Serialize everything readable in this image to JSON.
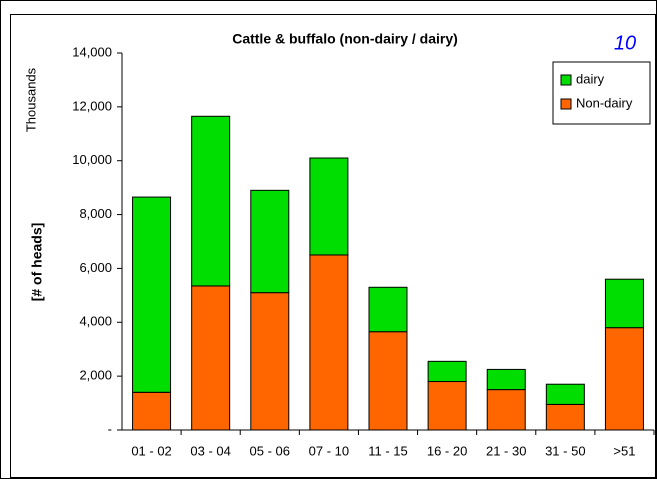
{
  "chart_data": {
    "type": "stacked-bar",
    "title": "Cattle & buffalo (non-dairy / dairy)",
    "annotation": "10",
    "y_unit_label": "Thousands",
    "y_axis_label": "[# of heads]",
    "categories": [
      "01 - 02",
      "03 - 04",
      "05 - 06",
      "07 - 10",
      "11 - 15",
      "16 - 20",
      "21 - 30",
      "31 - 50",
      ">51"
    ],
    "series": [
      {
        "name": "Non-dairy",
        "color": "#ff6600",
        "values": [
          1400,
          5350,
          5100,
          6500,
          3650,
          1800,
          1500,
          950,
          3800
        ]
      },
      {
        "name": "dairy",
        "color": "#00dd00",
        "values": [
          7250,
          6300,
          3800,
          3600,
          1650,
          750,
          750,
          750,
          1800
        ]
      }
    ],
    "ylim": [
      0,
      14000
    ],
    "yticks": [
      {
        "value": 0,
        "label": "-"
      },
      {
        "value": 2000,
        "label": "2,000"
      },
      {
        "value": 4000,
        "label": "4,000"
      },
      {
        "value": 6000,
        "label": "6,000"
      },
      {
        "value": 8000,
        "label": "8,000"
      },
      {
        "value": 10000,
        "label": "10,000"
      },
      {
        "value": 12000,
        "label": "12,000"
      },
      {
        "value": 14000,
        "label": "14,000"
      }
    ],
    "legend": "top-right",
    "grid": false
  }
}
